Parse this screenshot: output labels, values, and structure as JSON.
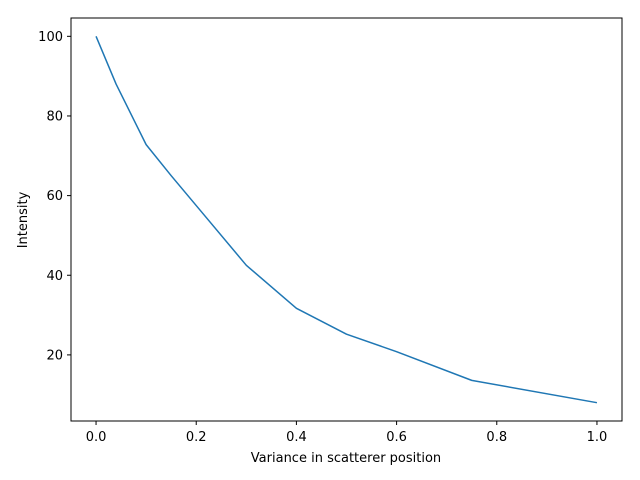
{
  "chart_data": {
    "type": "line",
    "title": "",
    "xlabel": "Variance in scatterer position",
    "ylabel": "Intensity",
    "xlim": [
      -0.05,
      1.05
    ],
    "ylim": [
      3.4,
      104.6
    ],
    "xticks": [
      0.0,
      0.2,
      0.4,
      0.6,
      0.8,
      1.0
    ],
    "xtick_labels": [
      "0.0",
      "0.2",
      "0.4",
      "0.6",
      "0.8",
      "1.0"
    ],
    "yticks": [
      20,
      40,
      60,
      80,
      100
    ],
    "ytick_labels": [
      "20",
      "40",
      "60",
      "80",
      "100"
    ],
    "grid": false,
    "series": [
      {
        "color": "#1f77b4",
        "x": [
          0.0,
          0.04,
          0.1,
          0.15,
          0.2,
          0.3,
          0.4,
          0.5,
          0.6,
          0.75,
          1.0
        ],
        "y": [
          100,
          88,
          72.8,
          65,
          57.5,
          42.5,
          31.7,
          25.2,
          20.8,
          13.6,
          8.0
        ]
      }
    ]
  }
}
